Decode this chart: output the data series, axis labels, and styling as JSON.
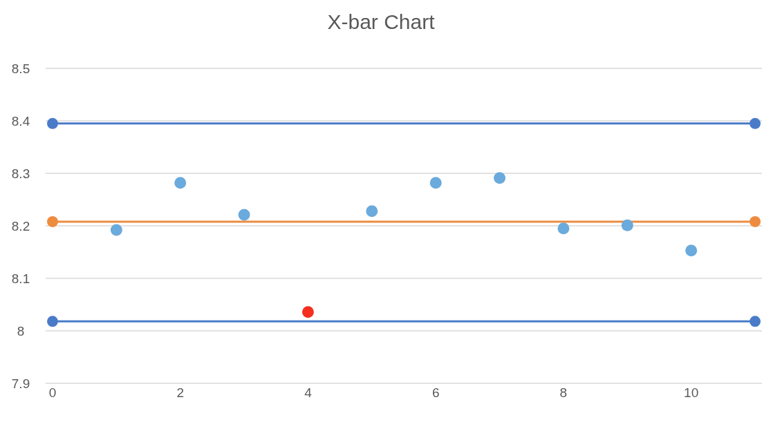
{
  "chart_data": {
    "type": "scatter",
    "title": "X-bar Chart",
    "xlim": [
      0,
      11
    ],
    "xticks": [
      0,
      2,
      4,
      6,
      8,
      10
    ],
    "ylim": [
      7.9,
      8.5
    ],
    "yticks": [
      7.9,
      8,
      8.1,
      8.2,
      8.3,
      8.4,
      8.5
    ],
    "grid": "y",
    "series": [
      {
        "type": "line",
        "color": "#4a7bc8",
        "x": [
          0,
          11
        ],
        "values": [
          8.395,
          8.395
        ],
        "marker": "circle",
        "line_style": "solid"
      },
      {
        "type": "line",
        "color": "#ed8b3f",
        "x": [
          0,
          11
        ],
        "values": [
          8.208,
          8.208
        ],
        "marker": "circle",
        "line_style": "solid"
      },
      {
        "type": "line",
        "color": "#4a7bc8",
        "x": [
          0,
          11
        ],
        "values": [
          8.018,
          8.018
        ],
        "marker": "circle",
        "line_style": "solid"
      },
      {
        "color": "#6aaadc",
        "x": [
          1,
          2,
          3,
          4,
          5,
          6,
          7,
          8,
          9,
          10
        ],
        "values": [
          8.192,
          8.282,
          8.221,
          8.036,
          8.228,
          8.282,
          8.291,
          8.195,
          8.201,
          8.153
        ],
        "colors": [
          null,
          null,
          null,
          "#f5301e",
          null,
          null,
          null,
          null,
          null,
          null
        ],
        "marker": "circle"
      }
    ]
  }
}
